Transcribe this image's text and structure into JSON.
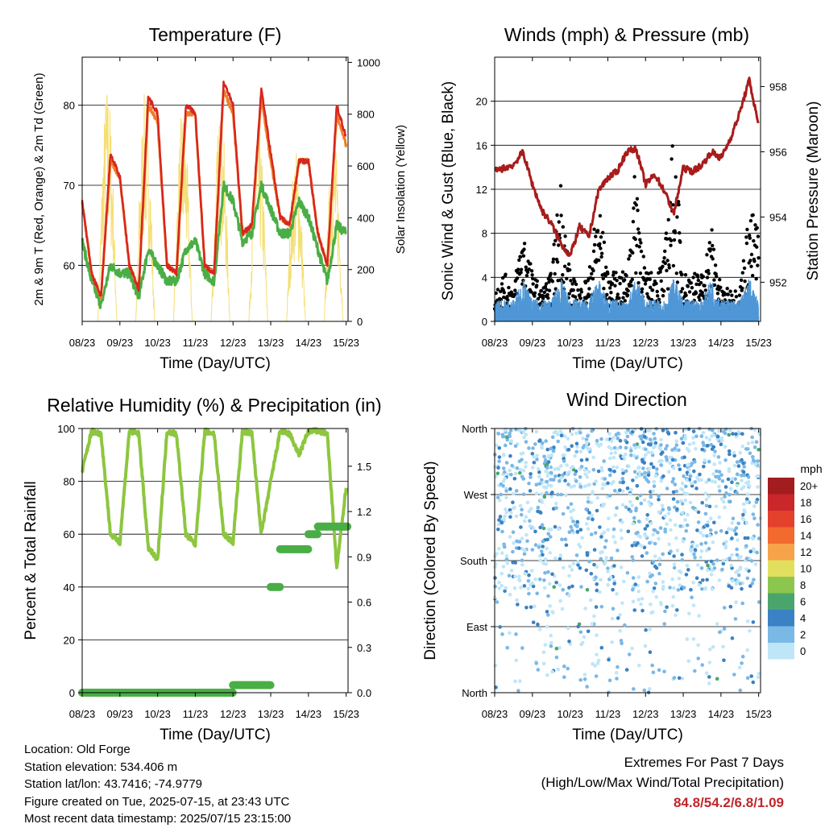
{
  "colors": {
    "temp_2m": "#d7261e",
    "temp_9m": "#f07d28",
    "dewpoint": "#4aae46",
    "solar": "#f4df74",
    "wind": "#4f97d6",
    "gust": "#000000",
    "pressure": "#a81c1c",
    "rh": "#8dc63f",
    "precip": "#4aae46"
  },
  "x_ticks": [
    "08/23",
    "09/23",
    "10/23",
    "11/23",
    "12/23",
    "13/23",
    "14/23",
    "15/23"
  ],
  "x_label": "Time (Day/UTC)",
  "info": {
    "location": "Location: Old Forge",
    "elevation": "Station elevation: 534.406 m",
    "latlon": "Station lat/lon: 43.7416; -74.9779",
    "created": "Figure created on Tue, 2025-07-15, at 23:43 UTC",
    "recent": "Most recent data timestamp: 2025/07/15 23:15:00"
  },
  "extremes": {
    "title": "Extremes For Past 7 Days",
    "subtitle": "(High/Low/Max Wind/Total Precipitation)",
    "values": "84.8/54.2/6.8/1.09"
  },
  "chart_data": [
    {
      "type": "line",
      "title": "Temperature (F)",
      "xlabel": "Time (Day/UTC)",
      "ylabel": "2m & 9m T (Red, Orange) & 2m Td (Green)",
      "y2label": "Solar Insolation (Yellow)",
      "ylim": [
        53,
        86
      ],
      "y2lim": [
        0,
        1020
      ],
      "yticks": [
        "60",
        "70",
        "80"
      ],
      "y2ticks": [
        "0",
        "200",
        "400",
        "600",
        "800",
        "1000"
      ],
      "x": [
        8,
        8.25,
        8.5,
        8.75,
        9,
        9.25,
        9.5,
        9.75,
        10,
        10.25,
        10.5,
        10.75,
        11,
        11.25,
        11.5,
        11.75,
        12,
        12.25,
        12.5,
        12.75,
        13,
        13.25,
        13.5,
        13.75,
        14,
        14.25,
        14.5,
        14.75,
        15
      ],
      "series": [
        {
          "name": "2m T",
          "values": [
            68,
            59,
            56,
            74,
            71,
            60,
            57,
            81,
            79,
            60,
            59,
            80,
            79,
            60,
            59,
            83,
            80,
            64,
            65,
            82,
            74,
            66,
            65,
            73,
            73,
            64,
            60,
            80,
            76
          ]
        },
        {
          "name": "9m T",
          "values": [
            68,
            59,
            56,
            73,
            71,
            60,
            57,
            80,
            78,
            60,
            59,
            79,
            79,
            60,
            59,
            82,
            79,
            64,
            65,
            81,
            73,
            66,
            65,
            73,
            73,
            64,
            60,
            79,
            75
          ]
        },
        {
          "name": "2m Td",
          "values": [
            63,
            58,
            55,
            60,
            59,
            59,
            56,
            62,
            60,
            58,
            58,
            62,
            63,
            59,
            58,
            70,
            68,
            63,
            64,
            70,
            67,
            64,
            64,
            68,
            66,
            62,
            58,
            65,
            64
          ]
        },
        {
          "name": "Solar",
          "values": [
            0,
            0,
            900,
            970,
            0,
            0,
            850,
            950,
            0,
            0,
            780,
            900,
            0,
            0,
            800,
            870,
            0,
            0,
            700,
            860,
            0,
            0,
            650,
            700,
            0,
            0,
            800,
            600,
            0
          ]
        }
      ]
    },
    {
      "type": "scatter",
      "title": "Winds (mph) & Pressure (mb)",
      "xlabel": "Time (Day/UTC)",
      "ylabel": "Sonic Wind & Gust (Blue, Black)",
      "y2label": "Station Pressure (Maroon)",
      "ylim": [
        0,
        24
      ],
      "y2lim": [
        950.8,
        958.9
      ],
      "yticks": [
        "0",
        "4",
        "8",
        "12",
        "16",
        "20"
      ],
      "y2ticks": [
        "952",
        "954",
        "956",
        "958"
      ],
      "x": [
        8,
        8.25,
        8.5,
        8.75,
        9,
        9.25,
        9.5,
        9.75,
        10,
        10.25,
        10.5,
        10.75,
        11,
        11.25,
        11.5,
        11.75,
        12,
        12.25,
        12.5,
        12.75,
        13,
        13.25,
        13.5,
        13.75,
        14,
        14.25,
        14.5,
        14.75,
        15
      ],
      "series": [
        {
          "name": "Wind",
          "values": [
            1,
            1,
            1,
            2,
            1,
            1,
            1,
            2,
            1,
            1,
            1,
            2,
            1,
            1,
            1,
            2,
            1,
            1,
            1,
            2,
            1,
            1,
            1,
            2,
            1,
            1,
            1,
            2,
            1
          ]
        },
        {
          "name": "Gust",
          "values": [
            2,
            3,
            2,
            6,
            3,
            2,
            3,
            9,
            3,
            2,
            3,
            8,
            3,
            3,
            3,
            10,
            3,
            3,
            4,
            12,
            3,
            3,
            3,
            6,
            2,
            2,
            2,
            7,
            6
          ]
        },
        {
          "name": "Pressure",
          "values": [
            955.4,
            955.5,
            955.6,
            956.0,
            955.0,
            954.2,
            953.8,
            953.2,
            952.8,
            953.7,
            953.4,
            954.8,
            955.2,
            955.4,
            956.0,
            956.1,
            955.0,
            955.3,
            954.8,
            954.1,
            955.5,
            955.4,
            955.6,
            956.0,
            955.8,
            956.4,
            957.2,
            958.2,
            956.8
          ]
        }
      ]
    },
    {
      "type": "line",
      "title": "Relative Humidity (%) & Precipitation (in)",
      "xlabel": "Time (Day/UTC)",
      "ylabel": "Percent & Total Rainfall",
      "ylim": [
        0,
        100
      ],
      "y2lim": [
        0,
        1.75
      ],
      "yticks": [
        "0",
        "20",
        "40",
        "60",
        "80",
        "100"
      ],
      "y2ticks": [
        "0.0",
        "0.3",
        "0.6",
        "0.9",
        "1.2",
        "1.5"
      ],
      "x": [
        8,
        8.25,
        8.5,
        8.75,
        9,
        9.25,
        9.5,
        9.75,
        10,
        10.25,
        10.5,
        10.75,
        11,
        11.25,
        11.5,
        11.75,
        12,
        12.25,
        12.5,
        12.75,
        13,
        13.25,
        13.5,
        13.75,
        14,
        14.25,
        14.5,
        14.75,
        15
      ],
      "series": [
        {
          "name": "RH",
          "values": [
            84,
            99,
            98,
            60,
            57,
            99,
            98,
            55,
            50,
            99,
            98,
            60,
            56,
            99,
            98,
            60,
            57,
            99,
            98,
            60,
            80,
            99,
            98,
            90,
            99,
            99,
            98,
            47,
            78
          ]
        },
        {
          "name": "Precip",
          "values": [
            0,
            0,
            0,
            0,
            0,
            0,
            0,
            0,
            0,
            0,
            0,
            0,
            0,
            0,
            0,
            0,
            0.05,
            0.05,
            0.05,
            0.05,
            0.7,
            0.95,
            0.95,
            0.95,
            1.05,
            1.1,
            1.1,
            1.1,
            1.1
          ]
        }
      ]
    },
    {
      "type": "scatter",
      "title": "Wind Direction",
      "xlabel": "Time (Day/UTC)",
      "ylabel": "Direction (Colored By Speed)",
      "ylim": [
        0,
        360
      ],
      "yticks": [
        "North",
        "East",
        "South",
        "West",
        "North"
      ],
      "legend_title": "mph",
      "legend_labels": [
        "20+",
        "18",
        "16",
        "14",
        "12",
        "10",
        "8",
        "6",
        "4",
        "2",
        "0"
      ],
      "legend_colors": [
        "#a31c1f",
        "#c9272a",
        "#e3412b",
        "#f26a2e",
        "#f6a34a",
        "#e3df5e",
        "#8cc64f",
        "#4aa56c",
        "#3a82c4",
        "#7ab8e6",
        "#bfe6f7"
      ]
    }
  ]
}
